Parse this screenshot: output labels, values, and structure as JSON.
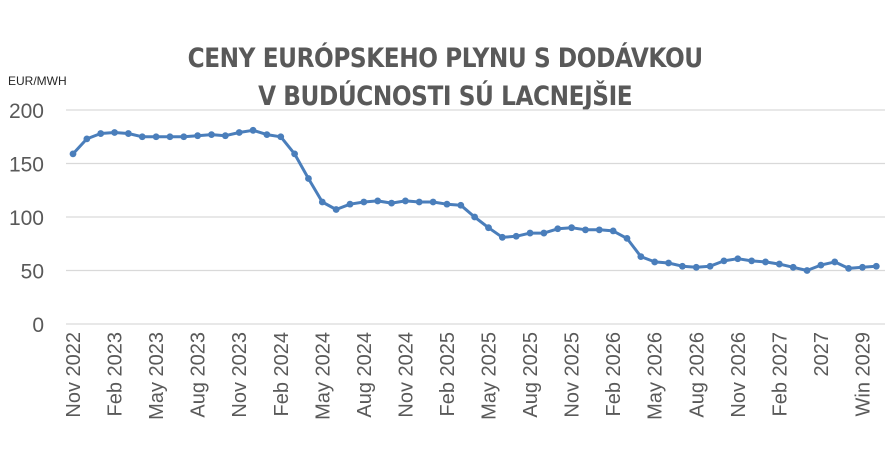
{
  "chart": {
    "title_line1": "CENY EURÓPSKEHO PLYNU S DODÁVKOU",
    "title_line2": "V BUDÚCNOSTI SÚ LACNEJŠIE",
    "unit_label": "EUR/MWH",
    "line_color": "#4a7ebb",
    "grid_color": "#d9d9d9",
    "text_color": "#595959"
  },
  "chart_data": {
    "type": "line",
    "title": "CENY EURÓPSKEHO PLYNU S DODÁVKOU V BUDÚCNOSTI SÚ LACNEJŠIE",
    "xlabel": "",
    "ylabel": "EUR/MWH",
    "ylim": [
      0,
      200
    ],
    "yticks": [
      0,
      50,
      100,
      150,
      200
    ],
    "grid": true,
    "legend": null,
    "x_tick_labels": [
      "Nov 2022",
      "Feb 2023",
      "May 2023",
      "Aug 2023",
      "Nov 2023",
      "Feb 2024",
      "May 2024",
      "Aug 2024",
      "Nov 2024",
      "Feb 2025",
      "May 2025",
      "Aug 2025",
      "Nov 2025",
      "Feb 2026",
      "May 2026",
      "Aug 2026",
      "Nov 2026",
      "Feb 2027",
      "2027",
      "Win 2029"
    ],
    "x_tick_every": 3,
    "series": [
      {
        "name": "EUR/MWH",
        "values": [
          159,
          173,
          178,
          179,
          178,
          175,
          175,
          175,
          175,
          176,
          177,
          176,
          179,
          181,
          177,
          175,
          159,
          136,
          114,
          107,
          112,
          114,
          115,
          113,
          115,
          114,
          114,
          112,
          111,
          100,
          90,
          81,
          82,
          85,
          85,
          89,
          90,
          88,
          88,
          87,
          80,
          63,
          58,
          57,
          54,
          53,
          54,
          59,
          61,
          59,
          58,
          56,
          53,
          50,
          55,
          58,
          52,
          53,
          54
        ]
      }
    ]
  }
}
